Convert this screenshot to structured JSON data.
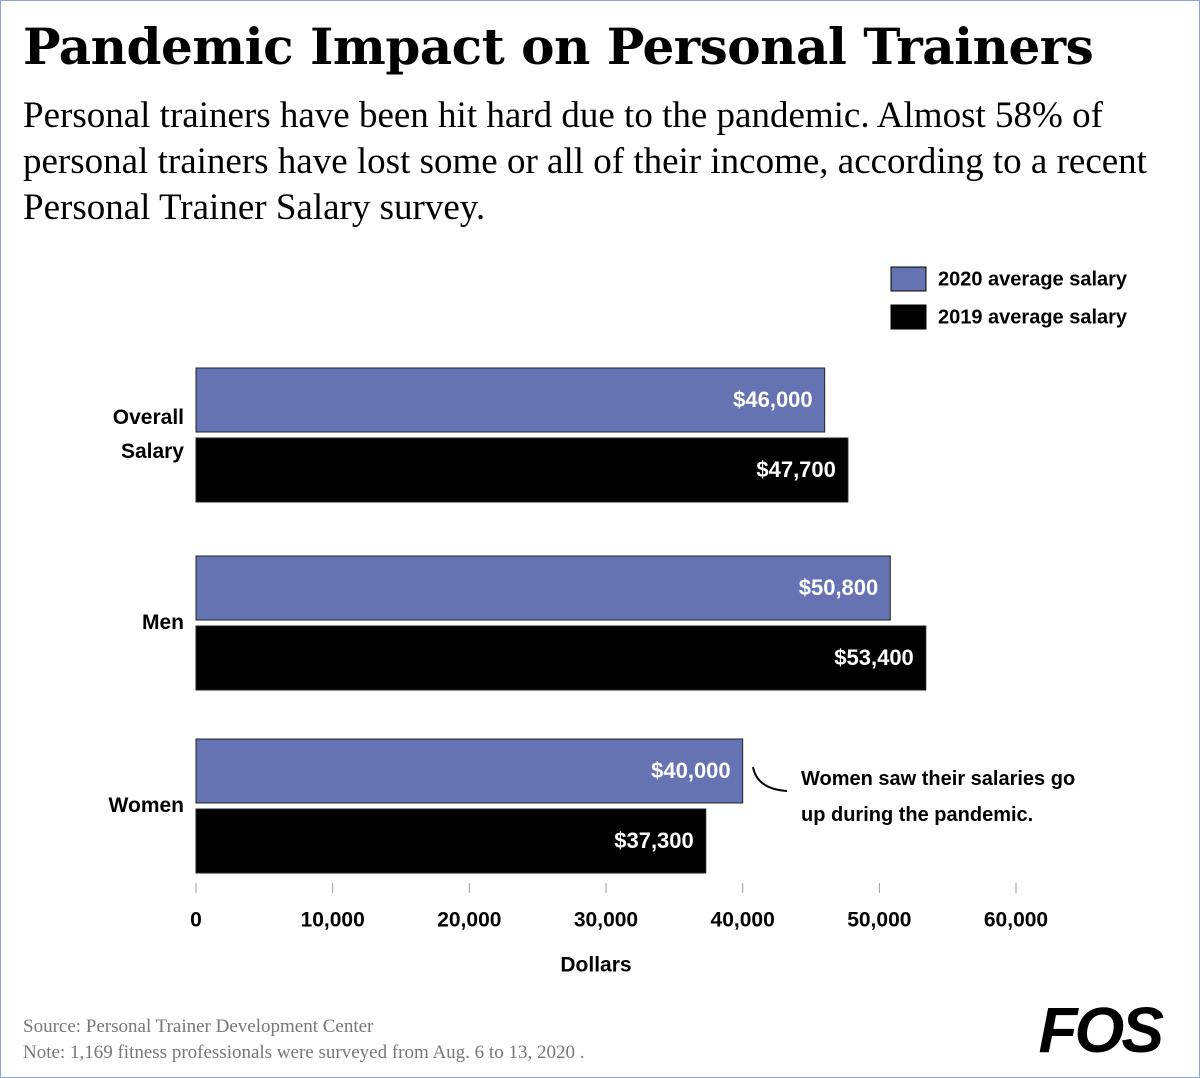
{
  "chart_data": {
    "type": "bar",
    "orientation": "horizontal",
    "title": "Pandemic Impact on Personal Trainers",
    "subtitle": "Personal trainers have been hit hard due to the pandemic. Almost 58% of personal trainers have lost some or all of their income, according to a recent Personal Trainer Salary survey.",
    "categories": [
      "Overall Salary",
      "Men",
      "Women"
    ],
    "series": [
      {
        "name": "2020 average salary",
        "color": "#6673b3",
        "values": [
          46000,
          50800,
          40000
        ],
        "value_labels": [
          "$46,000",
          "$50,800",
          "$40,000"
        ]
      },
      {
        "name": "2019 average salary",
        "color": "#000000",
        "values": [
          47700,
          53400,
          37300
        ],
        "value_labels": [
          "$47,700",
          "$53,400",
          "$37,300"
        ]
      }
    ],
    "xlim": [
      0,
      60000
    ],
    "xticks": [
      0,
      {
        "value": 10000,
        "label": "10,000"
      },
      {
        "value": 20000,
        "label": "20,000"
      },
      {
        "value": 30000,
        "label": "30,000"
      },
      {
        "value": 40000,
        "label": "40,000"
      },
      {
        "value": 50000,
        "label": "50,000"
      },
      {
        "value": 60000,
        "label": "60,000"
      }
    ],
    "x_label": "Dollars",
    "annotation": "Women saw their salaries go up during the pandemic.",
    "legend_position": "upper right"
  },
  "source": "Source: Personal Trainer Development Center",
  "note": "Note: 1,169 fitness professionals were surveyed from Aug. 6 to 13, 2020 .",
  "logo": "FOS"
}
